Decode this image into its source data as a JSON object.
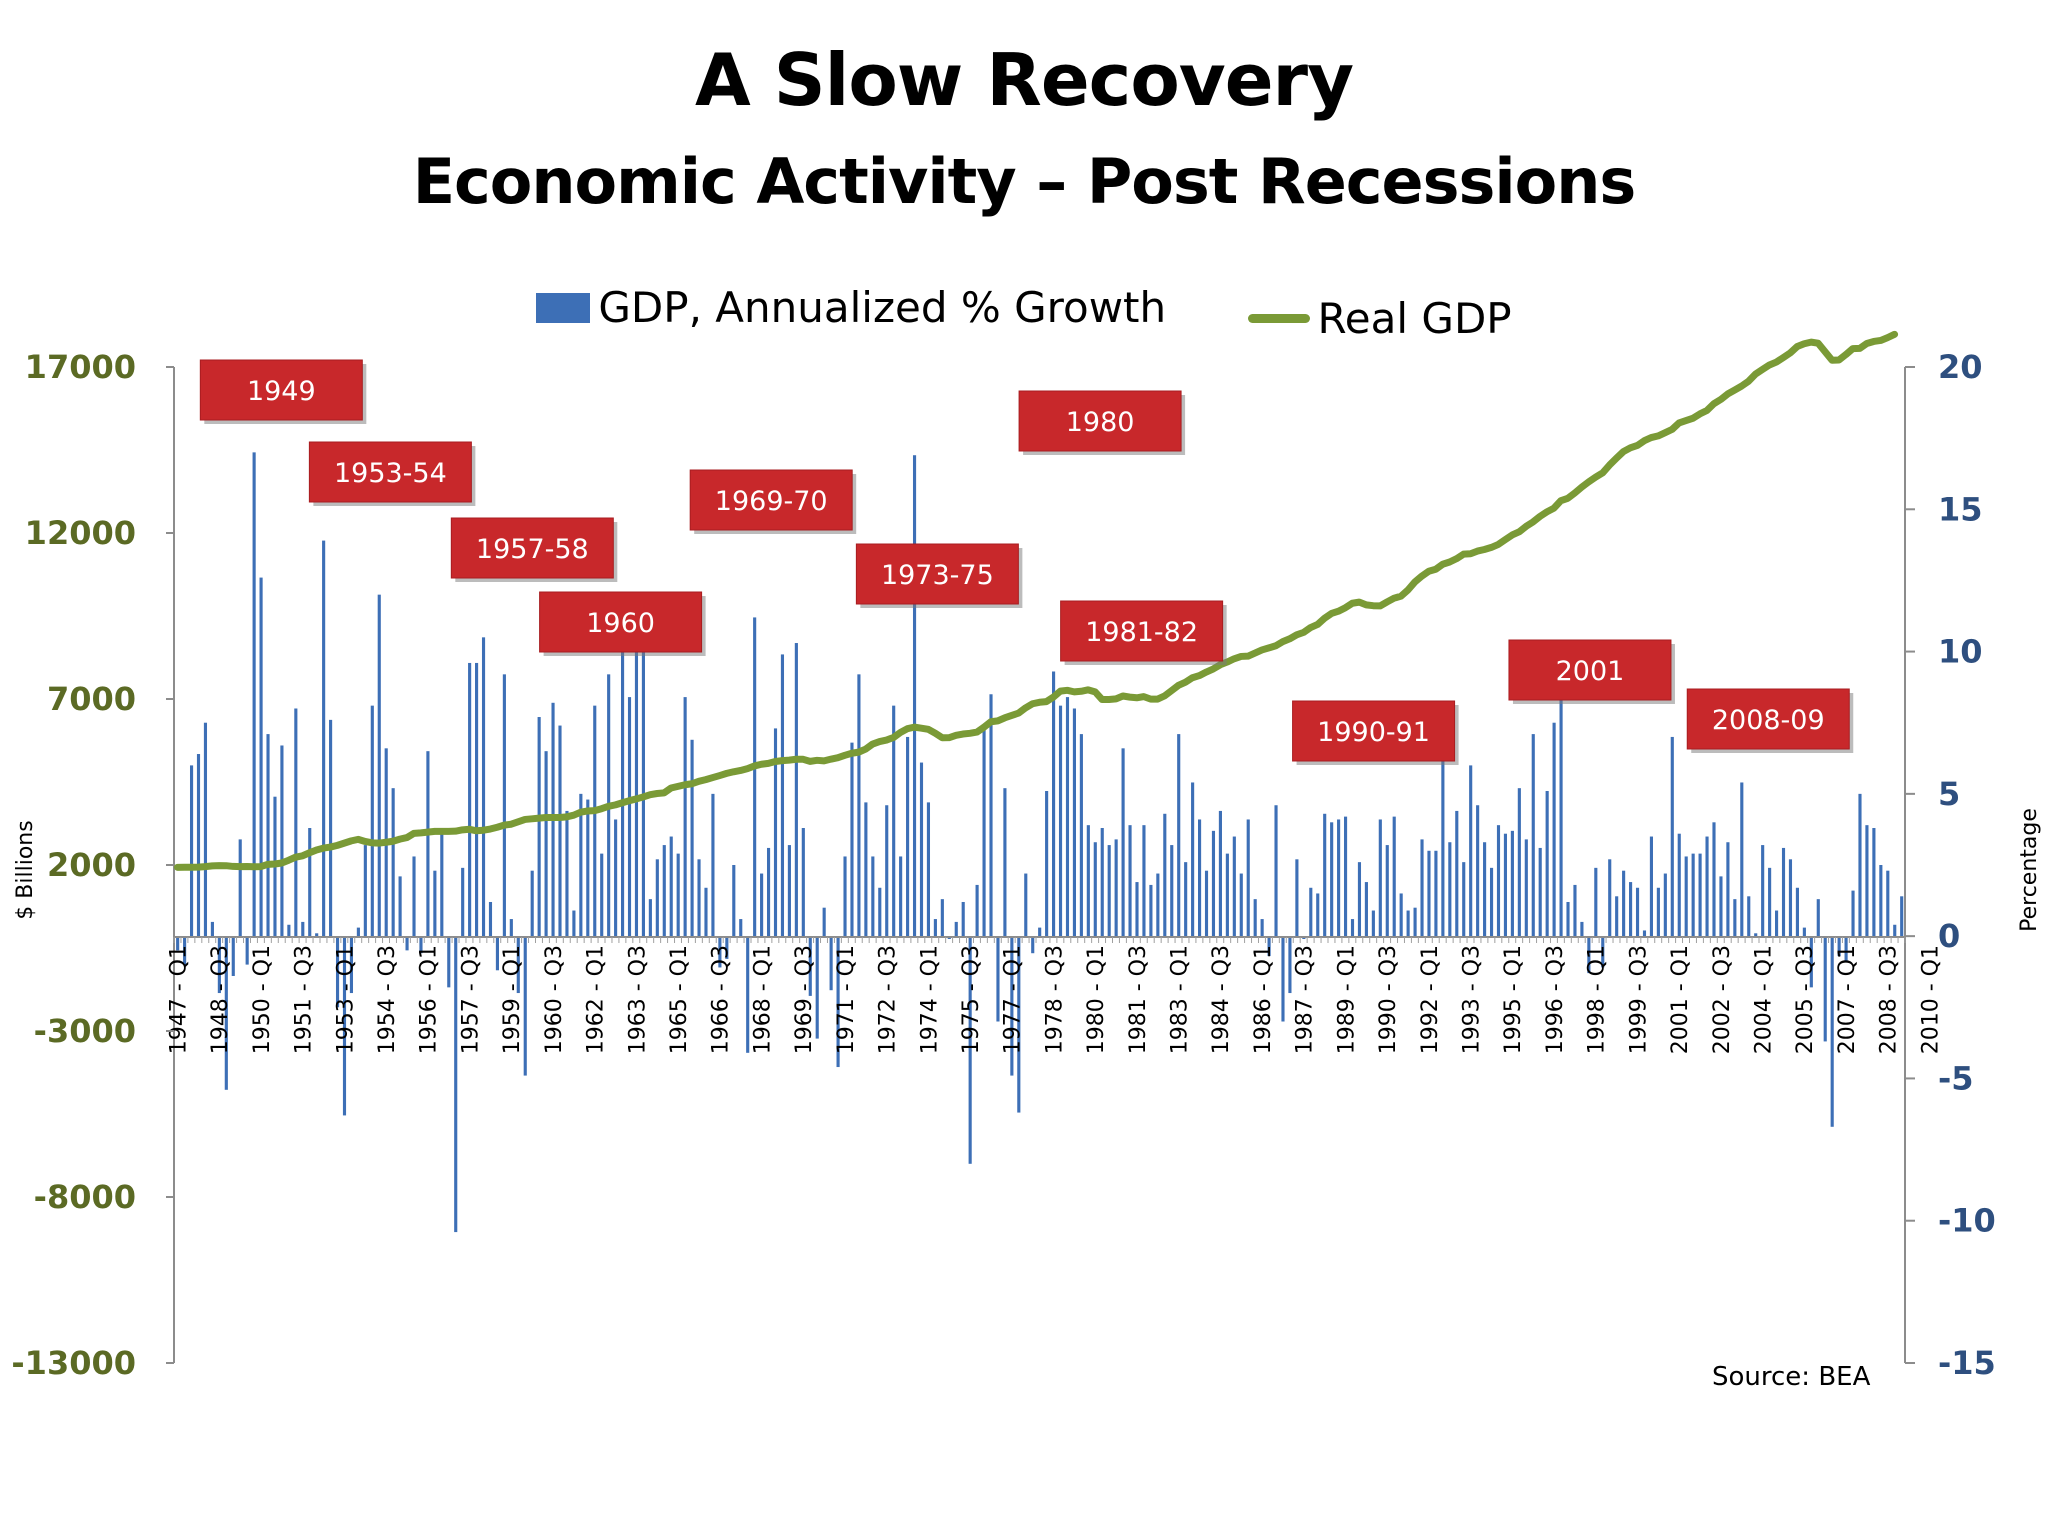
{
  "colors": {
    "bars": "#3d6fb6",
    "line": "#7a9a36",
    "left_axis_text": "#5b6a24",
    "right_axis_text": "#2e4f7f",
    "callout_fill": "#c8282b",
    "callout_text": "#ffffff"
  },
  "chart_data": {
    "type": "bar",
    "title": "A Slow Recovery",
    "subtitle": "Economic Activity – Post Recessions",
    "source": "Source: BEA",
    "legend": [
      "GDP, Annualized % Growth",
      "Real GDP"
    ],
    "legend_position": "top",
    "ylabel_left": "$ Billions",
    "ylabel_right": "Percentage",
    "ylim_left": [
      -13000,
      17000
    ],
    "ylim_right": [
      -15,
      20
    ],
    "yticks_left": [
      "17000",
      "12000",
      "7000",
      "2000",
      "-3000",
      "-8000",
      "-13000"
    ],
    "yticks_right": [
      "20",
      "15",
      "10",
      "5",
      "0",
      "-5",
      "-10",
      "-15"
    ],
    "grid": false,
    "x_range": [
      "1947 - Q1",
      "2011 - Q1"
    ],
    "x_tick_labels": [
      "1947 - Q1",
      "1948 - Q3",
      "1950 - Q1",
      "1951 - Q3",
      "1953 - Q1",
      "1954 - Q3",
      "1956 - Q1",
      "1957 - Q3",
      "1959 - Q1",
      "1960 - Q3",
      "1962 - Q1",
      "1963 - Q3",
      "1965 - Q1",
      "1966 - Q3",
      "1968 - Q1",
      "1969 - Q3",
      "1971 - Q1",
      "1972 - Q3",
      "1974 - Q1",
      "1975 - Q3",
      "1977 - Q1",
      "1978 - Q3",
      "1980 - Q1",
      "1981 - Q3",
      "1983 - Q1",
      "1984 - Q3",
      "1986 - Q1",
      "1987 - Q3",
      "1989 - Q1",
      "1990 - Q3",
      "1992 - Q1",
      "1993 - Q3",
      "1995 - Q1",
      "1996 - Q3",
      "1998 - Q1",
      "1999 - Q3",
      "2001 - Q1",
      "2002 - Q3",
      "2004 - Q1",
      "2005 - Q3",
      "2007 - Q1",
      "2008 - Q3",
      "2010 - Q1"
    ],
    "series": [
      {
        "name": "GDP, Annualized % Growth",
        "type": "bar",
        "axis": "right",
        "values": [
          -0.5,
          -1.0,
          6.0,
          6.4,
          7.5,
          0.5,
          -2.0,
          -5.4,
          -1.4,
          3.4,
          -1.0,
          17.0,
          12.6,
          7.1,
          4.9,
          6.7,
          0.4,
          8.0,
          0.5,
          3.8,
          0.1,
          13.9,
          7.6,
          -2.5,
          -6.3,
          -2.0,
          0.3,
          3.2,
          8.1,
          12.0,
          6.6,
          5.2,
          2.1,
          -0.5,
          2.8,
          -0.6,
          6.5,
          2.3,
          3.6,
          -1.8,
          -10.4,
          2.4,
          9.6,
          9.6,
          10.5,
          1.2,
          -1.2,
          9.2,
          0.6,
          -2.0,
          -4.9,
          2.3,
          7.7,
          6.5,
          8.2,
          7.4,
          4.4,
          0.9,
          5.0,
          4.8,
          8.1,
          2.9,
          9.2,
          4.1,
          10.3,
          8.4,
          10.0,
          10.2,
          1.3,
          2.7,
          3.2,
          3.5,
          2.9,
          8.4,
          6.9,
          2.7,
          1.7,
          5.0,
          -1.1,
          -0.8,
          2.5,
          0.6,
          -4.1,
          11.2,
          2.2,
          3.1,
          7.3,
          9.9,
          3.2,
          10.3,
          3.8,
          -2.1,
          -3.6,
          1.0,
          -1.9,
          -4.6,
          2.8,
          6.8,
          9.2,
          4.7,
          2.8,
          1.7,
          4.6,
          8.1,
          2.8,
          7.0,
          16.9,
          6.1,
          4.7,
          0.6,
          1.3,
          -0.1,
          0.5,
          1.2,
          -8.0,
          1.8,
          7.4,
          8.5,
          -3.0,
          5.2,
          -4.9,
          -6.2,
          2.2,
          -0.6,
          0.3,
          5.1,
          9.3,
          8.1,
          8.4,
          8.0,
          7.1,
          3.9,
          3.3,
          3.8,
          3.2,
          3.4,
          6.6,
          3.9,
          1.9,
          3.9,
          1.8,
          2.2,
          4.3,
          3.2,
          7.1,
          2.6,
          5.4,
          4.1,
          2.3,
          3.7,
          4.4,
          2.9,
          3.5,
          2.2,
          4.1,
          1.3,
          0.6,
          -0.7,
          4.6,
          -3.0,
          -2.0,
          2.7,
          -0.1,
          1.7,
          1.5,
          4.3,
          4.0,
          4.1,
          4.2,
          0.6,
          2.6,
          1.9,
          0.9,
          4.1,
          3.2,
          4.2,
          1.5,
          0.9,
          1.0,
          3.4,
          3.0,
          3.0,
          7.2,
          3.3,
          4.4,
          2.6,
          6.0,
          4.6,
          3.3,
          2.4,
          3.9,
          3.6,
          3.7,
          5.2,
          3.4,
          7.1,
          3.1,
          5.1,
          7.5,
          8.3,
          1.2,
          1.8,
          0.5,
          -1.3,
          2.4,
          -1.1,
          2.7,
          1.4,
          2.3,
          1.9,
          1.7,
          0.2,
          3.5,
          1.7,
          2.2,
          7.0,
          3.6,
          2.8,
          2.9,
          2.9,
          3.5,
          4.0,
          2.1,
          3.3,
          1.3,
          5.4,
          1.4,
          0.1,
          3.2,
          2.4,
          0.9,
          3.1,
          2.7,
          1.7,
          0.3,
          -1.8,
          1.3,
          -3.7,
          -6.7,
          -0.7,
          -0.9,
          1.6,
          5.0,
          3.9,
          3.8,
          2.5,
          2.3,
          0.4,
          1.4
        ]
      },
      {
        "name": "Real GDP",
        "type": "line",
        "axis": "left",
        "values": [
          1930,
          1931,
          1932,
          1935,
          1951,
          1974,
          1981,
          1979,
          1957,
          1950,
          1954,
          1949,
          1952,
          2020,
          2030,
          2060,
          2144,
          2237,
          2278,
          2369,
          2453,
          2510,
          2541,
          2591,
          2659,
          2727,
          2772,
          2708,
          2668,
          2659,
          2685,
          2715,
          2779,
          2826,
          2954,
          2968,
          2991,
          3013,
          3013,
          3014,
          3019,
          3058,
          3076,
          3030,
          3047,
          3084,
          3138,
          3201,
          3228,
          3300,
          3372,
          3391,
          3411,
          3431,
          3429,
          3432,
          3451,
          3500,
          3590,
          3627,
          3637,
          3695,
          3769,
          3811,
          3874,
          3937,
          3990,
          4050,
          4118,
          4154,
          4172,
          4320,
          4369,
          4417,
          4447,
          4521,
          4571,
          4633,
          4694,
          4759,
          4808,
          4848,
          4904,
          4983,
          5034,
          5060,
          5118,
          5143,
          5158,
          5185,
          5184,
          5121,
          5153,
          5137,
          5188,
          5232,
          5304,
          5366,
          5400,
          5492,
          5644,
          5718,
          5764,
          5841,
          5992,
          6106,
          6153,
          6121,
          6086,
          5970,
          5833,
          5835,
          5905,
          5945,
          5967,
          6003,
          6150,
          6314,
          6341,
          6432,
          6505,
          6576,
          6733,
          6857,
          6901,
          6921,
          7057,
          7237,
          7261,
          7215,
          7233,
          7276,
          7216,
          6985,
          6985,
          7004,
          7090,
          7057,
          7037,
          7072,
          6996,
          6998,
          7094,
          7252,
          7412,
          7506,
          7641,
          7705,
          7813,
          7907,
          8030,
          8114,
          8212,
          8282,
          8290,
          8384,
          8478,
          8540,
          8604,
          8727,
          8814,
          8934,
          9007,
          9153,
          9245,
          9431,
          9576,
          9644,
          9750,
          9884,
          9918,
          9835,
          9810,
          9804,
          9924,
          10036,
          10097,
          10283,
          10526,
          10702,
          10848,
          10909,
          11059,
          11126,
          11227,
          11362,
          11375,
          11455,
          11503,
          11566,
          11656,
          11799,
          11941,
          12035,
          12201,
          12334,
          12501,
          12638,
          12748,
          12974,
          13046,
          13205,
          13382,
          13540,
          13684,
          13810,
          14047,
          14254,
          14453,
          14565,
          14636,
          14779,
          14875,
          14925,
          15021,
          15121,
          15315,
          15388,
          15456,
          15587,
          15690,
          15893,
          16023,
          16188,
          16305,
          16426,
          16572,
          16788,
          16925,
          17061,
          17149,
          17285,
          17426,
          17617,
          17700,
          17749,
          17718,
          17461,
          17205,
          17211,
          17375,
          17555,
          17561,
          17708,
          17769,
          17799,
          17884,
          17984
        ]
      }
    ],
    "annotations": [
      {
        "label": "1949",
        "ax": 0.062
      },
      {
        "label": "1953-54",
        "ax": 0.125
      },
      {
        "label": "1957-58",
        "ax": 0.207
      },
      {
        "label": "1960",
        "ax": 0.258
      },
      {
        "label": "1969-70",
        "ax": 0.345
      },
      {
        "label": "1973-75",
        "ax": 0.441
      },
      {
        "label": "1980",
        "ax": 0.535
      },
      {
        "label": "1981-82",
        "ax": 0.559
      },
      {
        "label": "1990-91",
        "ax": 0.693
      },
      {
        "label": "2001",
        "ax": 0.818
      },
      {
        "label": "2008-09",
        "ax": 0.921
      }
    ]
  }
}
